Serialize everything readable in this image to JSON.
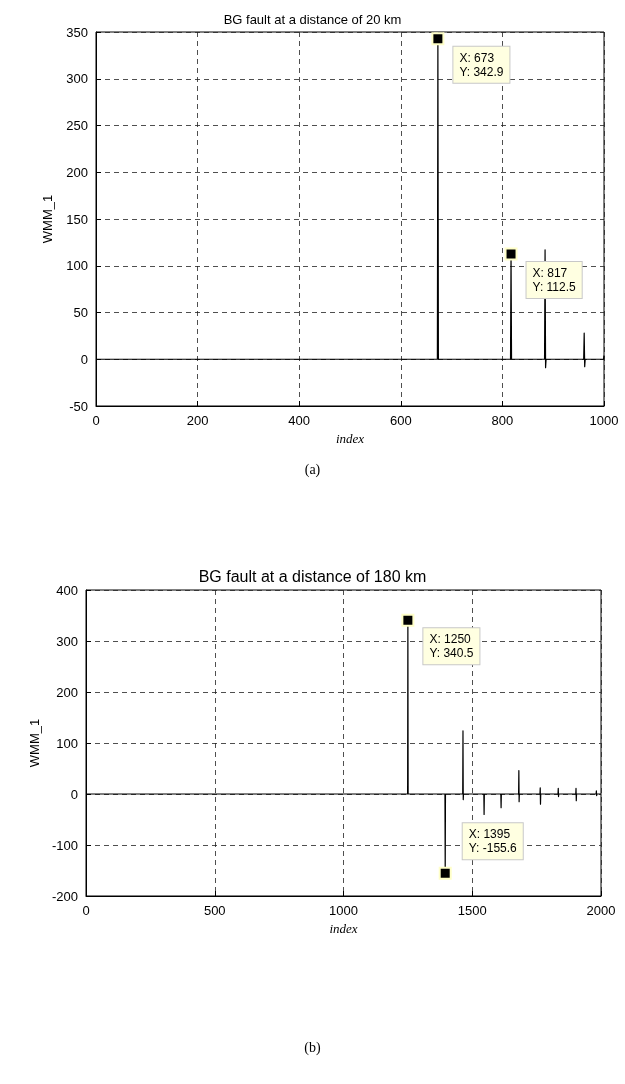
{
  "chart_data": [
    {
      "type": "line",
      "title": "BG fault at a distance of 20 km",
      "xlabel": "index",
      "ylabel": "WMM_1",
      "color": "#000000",
      "x": [
        0,
        672,
        673,
        674,
        816,
        817,
        818,
        883,
        884,
        885,
        886,
        960,
        961,
        962,
        963,
        999,
        1000
      ],
      "values": [
        0,
        0,
        342.9,
        0,
        0,
        112.5,
        0,
        0,
        117,
        -9,
        0,
        0,
        28,
        -8,
        0,
        0,
        4
      ],
      "xlim": [
        0,
        1000
      ],
      "ylim": [
        -50,
        350
      ],
      "xticks": [
        0,
        200,
        400,
        600,
        800,
        1000
      ],
      "yticks": [
        -50,
        0,
        50,
        100,
        150,
        200,
        250,
        300,
        350
      ],
      "grid": true,
      "annotations": [
        {
          "text": "X: 673\nY: 342.9",
          "x": 673,
          "y": 342.9
        },
        {
          "text": "X: 817\nY: 112.5",
          "x": 817,
          "y": 112.5
        },
        "(a)"
      ]
    },
    {
      "type": "line",
      "title": "BG fault at a distance of 180 km",
      "xlabel": "index",
      "ylabel": "WMM_1",
      "color": "#000000",
      "x": [
        0,
        1249,
        1250,
        1251,
        1394,
        1395,
        1396,
        1463,
        1464,
        1465,
        1466,
        1545,
        1546,
        1547,
        1611,
        1612,
        1613,
        1680,
        1681,
        1682,
        1683,
        1763,
        1764,
        1765,
        1766,
        1833,
        1834,
        1835,
        1836,
        1902,
        1903,
        1904,
        1905,
        1981,
        1982,
        1983,
        1984,
        2000
      ],
      "values": [
        0,
        0,
        340.5,
        0,
        0,
        -155.6,
        0,
        0,
        124,
        -11,
        0,
        0,
        -40,
        0,
        0,
        -27,
        0,
        0,
        46,
        -15,
        0,
        0,
        12,
        -20,
        0,
        0,
        11,
        -5,
        0,
        0,
        11,
        -13,
        0,
        0,
        6,
        -3,
        0,
        0
      ],
      "xlim": [
        0,
        2000
      ],
      "ylim": [
        -200,
        400
      ],
      "xticks": [
        0,
        500,
        1000,
        1500,
        2000
      ],
      "yticks": [
        -200,
        -100,
        0,
        100,
        200,
        300,
        400
      ],
      "grid": true,
      "annotations": [
        {
          "text": "X: 1250\nY: 340.5",
          "x": 1250,
          "y": 340.5
        },
        {
          "text": "X: 1395\nY: -155.6",
          "x": 1395,
          "y": -155.6
        },
        "(b)"
      ]
    }
  ]
}
